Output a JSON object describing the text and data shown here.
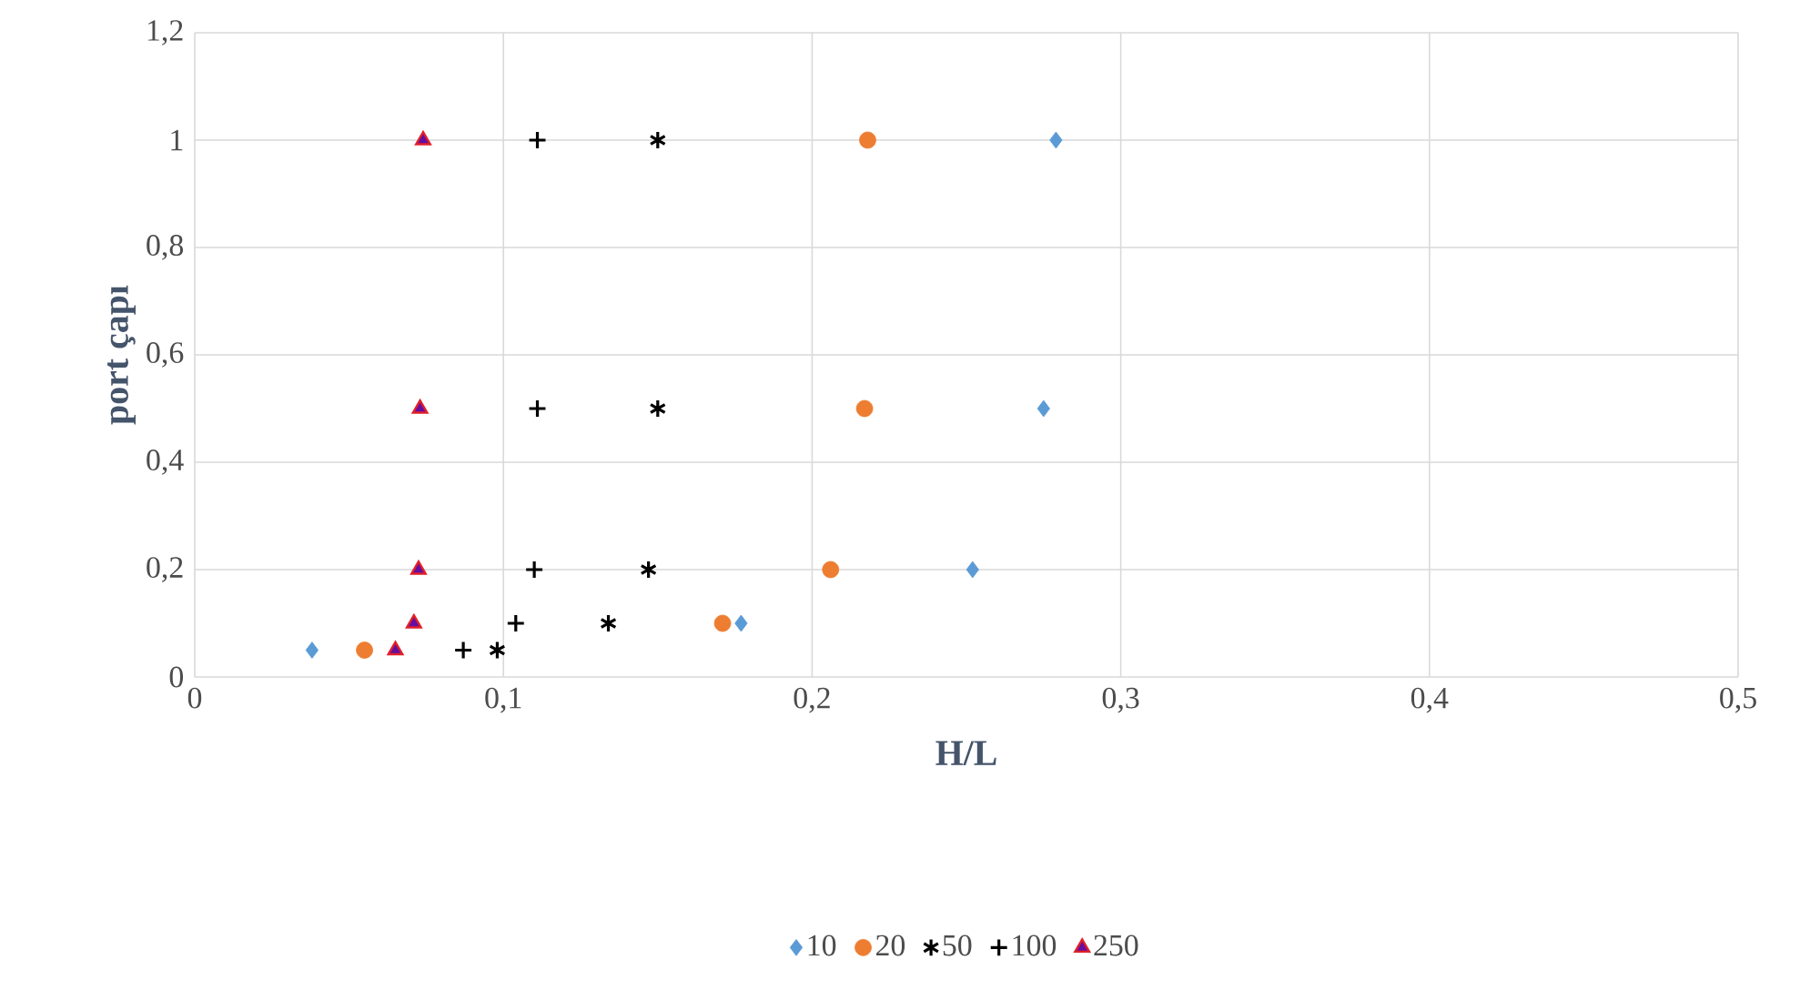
{
  "chart_data": {
    "type": "scatter",
    "xlabel": "H/L",
    "ylabel": "port çapı",
    "xlim": [
      0,
      0.5
    ],
    "ylim": [
      0,
      1.2
    ],
    "xticks": [
      0,
      {
        "value": 0.1,
        "label": "0,1"
      },
      {
        "value": 0.2,
        "label": "0,2"
      },
      {
        "value": 0.3,
        "label": "0,3"
      },
      {
        "value": 0.4,
        "label": "0,4"
      },
      {
        "value": 0.5,
        "label": "0,5"
      }
    ],
    "yticks": [
      0,
      {
        "value": 0.2,
        "label": "0,2"
      },
      {
        "value": 0.4,
        "label": "0,4"
      },
      {
        "value": 0.6,
        "label": "0,6"
      },
      {
        "value": 0.8,
        "label": "0,8"
      },
      1,
      {
        "value": 1.2,
        "label": "1,2"
      }
    ],
    "grid": true,
    "legend": "bottom",
    "series": [
      {
        "name": "10",
        "color": "#5b9bd5",
        "marker": "diamond",
        "x": [
          0.038,
          0.177,
          0.252,
          0.275,
          0.279
        ],
        "values": [
          0.05,
          0.1,
          0.2,
          0.5,
          1
        ]
      },
      {
        "name": "20",
        "color": "#ed7d31",
        "marker": "circle",
        "x": [
          0.055,
          0.171,
          0.206,
          0.217,
          0.218
        ],
        "values": [
          0.05,
          0.1,
          0.2,
          0.5,
          1
        ]
      },
      {
        "name": "50",
        "color": "#000000",
        "marker": "cross",
        "x": [
          0.098,
          0.134,
          0.147,
          0.15,
          0.15
        ],
        "values": [
          0.05,
          0.1,
          0.2,
          0.5,
          1
        ]
      },
      {
        "name": "100",
        "color": "#000000",
        "x": [
          0.087,
          0.104,
          0.11,
          0.111,
          0.111
        ],
        "values": [
          0.05,
          0.1,
          0.2,
          0.5,
          1
        ]
      },
      {
        "name": "250",
        "color": "#e0202a",
        "marker": "triangle",
        "x": [
          0.065,
          0.071,
          0.0725,
          0.073,
          0.074
        ],
        "values": [
          0.05,
          0.1,
          0.2,
          0.5,
          1
        ]
      }
    ]
  }
}
